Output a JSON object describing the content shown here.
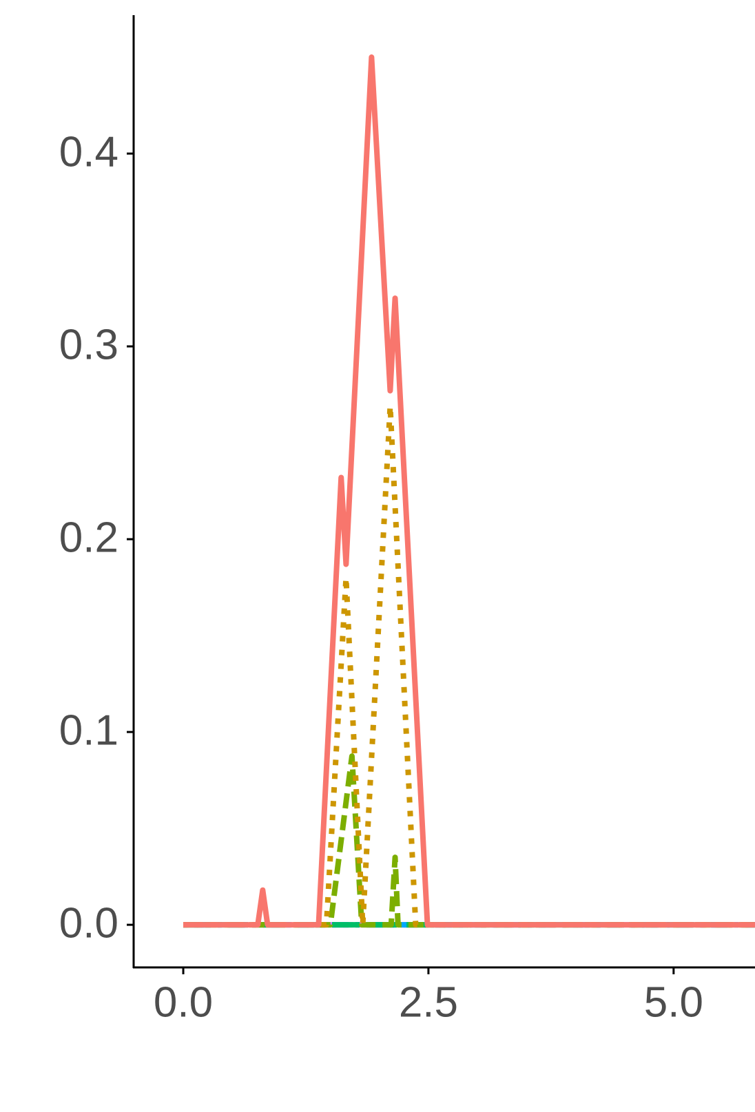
{
  "chart_data": {
    "type": "line",
    "xlim": [
      -0.506,
      5.83
    ],
    "ylim": [
      -0.0221,
      0.4718
    ],
    "xticks": [
      {
        "value": 0,
        "label": "0.0"
      },
      2.5,
      {
        "value": 5,
        "label": "5.0"
      }
    ],
    "yticks": [
      {
        "value": 0,
        "label": "0.0"
      },
      0.1,
      0.2,
      0.3,
      0.4
    ],
    "grid": false,
    "series": [
      {
        "color": "#F8766D",
        "dash": "solid",
        "x": [
          0,
          0.76,
          0.81,
          0.86,
          1.38,
          1.61,
          1.66,
          1.92,
          2.11,
          2.16,
          2.49,
          5.83
        ],
        "values": [
          0,
          0,
          0.018,
          0,
          0,
          0.232,
          0.187,
          0.45,
          0.277,
          0.325,
          0,
          0
        ]
      },
      {
        "color": "#CD9600",
        "dash": "dotted",
        "x": [
          0,
          1.46,
          1.66,
          1.83,
          2.11,
          2.37,
          5.83
        ],
        "values": [
          0,
          0,
          0.18,
          0,
          0.269,
          0,
          0
        ]
      },
      {
        "color": "#7CAE00",
        "dash": "dashed",
        "x": [
          0,
          1.5,
          1.72,
          1.82,
          2.12,
          2.16,
          2.19,
          5.83
        ],
        "values": [
          0,
          0,
          0.0875,
          0,
          0,
          0.035,
          0,
          0
        ]
      },
      {
        "color": "#00BE67",
        "dash": "longdash",
        "x": [
          0,
          5.83
        ],
        "values": [
          0,
          0
        ]
      },
      {
        "color": "#00A9FF",
        "dash": "dotdash",
        "x": [
          0,
          5.83
        ],
        "values": [
          0,
          0
        ]
      },
      {
        "color": "#C77CFF",
        "dash": "twodash",
        "x": [
          0,
          5.83
        ],
        "values": [
          0,
          0
        ]
      },
      {
        "color": "#FF61CC",
        "dash": "dotdash",
        "x": [
          0,
          5.83
        ],
        "values": [
          0,
          0
        ]
      }
    ]
  }
}
